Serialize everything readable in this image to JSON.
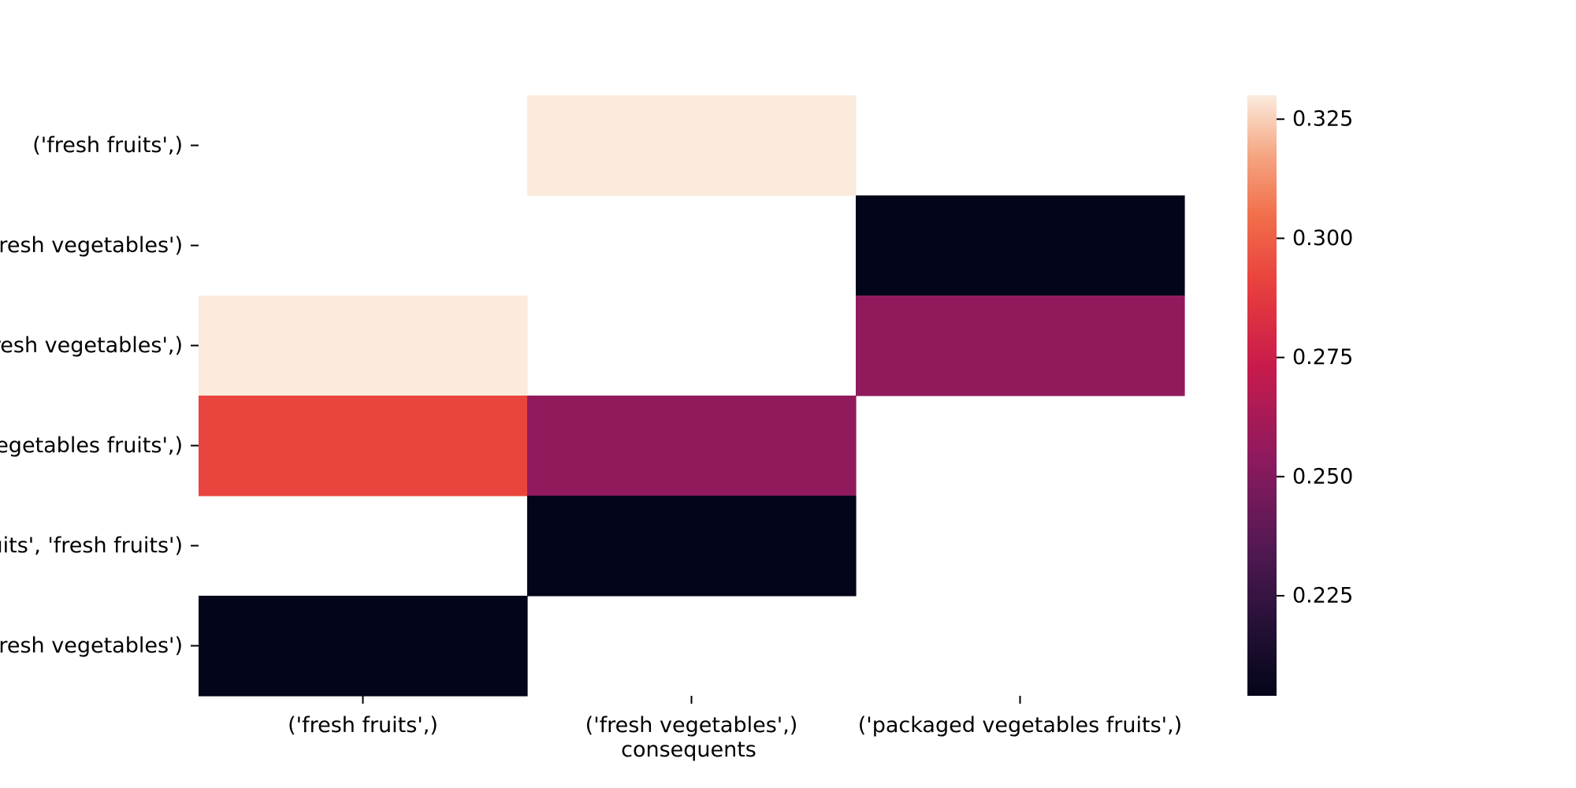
{
  "chart_data": {
    "type": "heatmap",
    "xlabel": "consequents",
    "ylabel": "",
    "x_categories": [
      "('fresh fruits',)",
      "('fresh vegetables',)",
      "('packaged vegetables fruits',)"
    ],
    "y_categories": [
      "('fresh fruits',)",
      "('fresh fruits', 'fresh vegetables')",
      "('fresh vegetables',)",
      "('packaged vegetables fruits',)",
      "('packaged vegetables fruits', 'fresh fruits')",
      "('packaged vegetables fruits', 'fresh vegetables')"
    ],
    "values": [
      [
        null,
        0.33,
        null
      ],
      [
        null,
        null,
        0.204
      ],
      [
        0.33,
        null,
        0.255
      ],
      [
        0.292,
        0.255,
        null
      ],
      [
        null,
        0.204,
        null
      ],
      [
        0.204,
        null,
        null
      ]
    ],
    "colorbar": {
      "vmin": 0.204,
      "vmax": 0.33,
      "ticks": [
        0.225,
        0.25,
        0.275,
        0.3,
        0.325
      ],
      "tick_labels": [
        "0.225",
        "0.250",
        "0.275",
        "0.300",
        "0.325"
      ]
    },
    "colormap": "rocket"
  }
}
